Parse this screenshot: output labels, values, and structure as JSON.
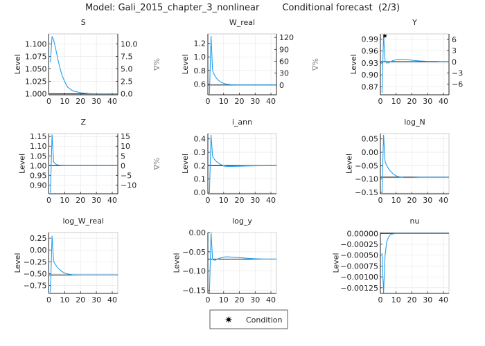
{
  "title": "Model: Gali_2015_chapter_3_nonlinear        Conditional forecast  (2/3)",
  "legend": {
    "label": "Condition",
    "marker": "star",
    "placement": "bottom-center"
  },
  "colors": {
    "forecast": "#1f9ff0",
    "steady_state": "#333333",
    "grid": "#e6e6e6"
  },
  "chart_data": [
    {
      "type": "line",
      "title": "S",
      "ylabel": "Level",
      "ylabel_right": "%Δ",
      "xlim": [
        0,
        43.5
      ],
      "ylim": [
        0.998,
        1.12
      ],
      "xticks": [
        0,
        10,
        20,
        30,
        40
      ],
      "yticks": [
        1.0,
        1.025,
        1.05,
        1.075,
        1.1
      ],
      "ytick_labels": [
        "1.000",
        "1.025",
        "1.050",
        "1.075",
        "1.100"
      ],
      "rticks": [
        "0.0",
        "2.5",
        "5.0",
        "7.5",
        "10.0"
      ],
      "steady_state": 1.0,
      "x": [
        1,
        2,
        3,
        4,
        5,
        6,
        8,
        10,
        12,
        15,
        20,
        25,
        30,
        35,
        40
      ],
      "values": [
        1.063,
        1.115,
        1.108,
        1.095,
        1.08,
        1.065,
        1.04,
        1.024,
        1.013,
        1.006,
        1.002,
        1.0005,
        1.0,
        1.0,
        1.0
      ]
    },
    {
      "type": "line",
      "title": "W_real",
      "ylabel": "Level",
      "ylabel_right": "%Δ",
      "xlim": [
        0,
        43.5
      ],
      "ylim": [
        0.44,
        1.34
      ],
      "xticks": [
        0,
        10,
        20,
        30,
        40
      ],
      "yticks": [
        0.6,
        0.8,
        1.0,
        1.2
      ],
      "ytick_labels": [
        "0.6",
        "0.8",
        "1.0",
        "1.2"
      ],
      "rticks": [
        "0",
        "30",
        "60",
        "90",
        "120"
      ],
      "steady_state": 0.585,
      "x": [
        1,
        2,
        3,
        4,
        5,
        6,
        8,
        10,
        12,
        15,
        20,
        25,
        30,
        35,
        40
      ],
      "values": [
        0.45,
        1.31,
        0.8,
        0.74,
        0.7,
        0.67,
        0.63,
        0.61,
        0.595,
        0.588,
        0.585,
        0.585,
        0.585,
        0.585,
        0.585
      ]
    },
    {
      "type": "line",
      "title": "Y",
      "ylabel": "Level",
      "ylabel_right": "%Δ",
      "xlim": [
        0,
        43.5
      ],
      "ylim": [
        0.85,
        1.003
      ],
      "xticks": [
        0,
        10,
        20,
        30,
        40
      ],
      "yticks": [
        0.87,
        0.9,
        0.93,
        0.96,
        0.99
      ],
      "ytick_labels": [
        "0.87",
        "0.90",
        "0.93",
        "0.96",
        "0.99"
      ],
      "rticks": [
        "−6",
        "−3",
        "0",
        "3",
        "6"
      ],
      "steady_state": 0.933,
      "x": [
        1,
        2,
        3,
        4,
        5,
        6,
        8,
        10,
        12,
        15,
        20,
        25,
        30,
        35,
        40
      ],
      "values": [
        0.855,
        1.0,
        0.935,
        0.93,
        0.93,
        0.932,
        0.936,
        0.938,
        0.939,
        0.939,
        0.937,
        0.935,
        0.934,
        0.934,
        0.933
      ],
      "condition": {
        "x": 2,
        "y": 1.0
      }
    },
    {
      "type": "line",
      "title": "Z",
      "ylabel": "Level",
      "ylabel_right": "%Δ",
      "xlim": [
        0,
        43.5
      ],
      "ylim": [
        0.855,
        1.165
      ],
      "xticks": [
        0,
        10,
        20,
        30,
        40
      ],
      "yticks": [
        0.9,
        0.95,
        1.0,
        1.05,
        1.1,
        1.15
      ],
      "ytick_labels": [
        "0.90",
        "0.95",
        "1.00",
        "1.05",
        "1.10",
        "1.15"
      ],
      "rticks": [
        "−10",
        "−5",
        "0",
        "5",
        "10",
        "15"
      ],
      "steady_state": 1.0,
      "x": [
        1,
        2,
        3,
        4,
        5,
        6,
        8,
        10,
        12,
        15,
        20,
        25,
        30,
        35,
        40
      ],
      "values": [
        0.86,
        1.16,
        1.02,
        1.01,
        1.005,
        1.003,
        1.001,
        1.0,
        1.0,
        1.0,
        1.0,
        1.0,
        1.0,
        1.0,
        1.0
      ]
    },
    {
      "type": "line",
      "title": "i_ann",
      "ylabel": "Level",
      "xlim": [
        0,
        43.5
      ],
      "ylim": [
        -0.01,
        0.44
      ],
      "xticks": [
        0,
        10,
        20,
        30,
        40
      ],
      "yticks": [
        0,
        0.1,
        0.2,
        0.3,
        0.4
      ],
      "ytick_labels": [
        "0.0",
        "0.1",
        "0.2",
        "0.3",
        "0.4"
      ],
      "steady_state": 0.2,
      "x": [
        1,
        2,
        3,
        4,
        5,
        6,
        8,
        10,
        12,
        15,
        20,
        25,
        30,
        35,
        40
      ],
      "values": [
        0.0,
        0.43,
        0.27,
        0.25,
        0.235,
        0.225,
        0.21,
        0.198,
        0.195,
        0.195,
        0.196,
        0.198,
        0.199,
        0.2,
        0.2
      ]
    },
    {
      "type": "line",
      "title": "log_N",
      "ylabel": "Level",
      "xlim": [
        0,
        43.5
      ],
      "ylim": [
        -0.155,
        0.07
      ],
      "xticks": [
        0,
        10,
        20,
        30,
        40
      ],
      "yticks": [
        -0.15,
        -0.1,
        -0.05,
        0,
        0.05
      ],
      "ytick_labels": [
        "−0.15",
        "−0.10",
        "−0.05",
        "0.00",
        "0.05"
      ],
      "steady_state": -0.093,
      "x": [
        1,
        2,
        3,
        4,
        5,
        6,
        8,
        10,
        12,
        15,
        20,
        25,
        30,
        35,
        40
      ],
      "values": [
        -0.15,
        0.065,
        -0.035,
        -0.05,
        -0.06,
        -0.068,
        -0.08,
        -0.088,
        -0.092,
        -0.094,
        -0.094,
        -0.093,
        -0.093,
        -0.093,
        -0.093
      ]
    },
    {
      "type": "line",
      "title": "log_W_real",
      "ylabel": "Level",
      "xlim": [
        0,
        43.5
      ],
      "ylim": [
        -0.92,
        0.37
      ],
      "xticks": [
        0,
        10,
        20,
        30,
        40
      ],
      "yticks": [
        -0.75,
        -0.5,
        -0.25,
        0,
        0.25
      ],
      "ytick_labels": [
        "−0.75",
        "−0.50",
        "−0.25",
        "0.00",
        "0.25"
      ],
      "steady_state": -0.53,
      "x": [
        1,
        2,
        3,
        4,
        5,
        6,
        8,
        10,
        12,
        15,
        20,
        25,
        30,
        35,
        40
      ],
      "values": [
        -0.9,
        0.3,
        -0.24,
        -0.3,
        -0.35,
        -0.39,
        -0.45,
        -0.49,
        -0.51,
        -0.525,
        -0.53,
        -0.53,
        -0.53,
        -0.53,
        -0.53
      ]
    },
    {
      "type": "line",
      "title": "log_y",
      "ylabel": "Level",
      "xlim": [
        0,
        43.5
      ],
      "ylim": [
        -0.158,
        0.0
      ],
      "xticks": [
        0,
        10,
        20,
        30,
        40
      ],
      "yticks": [
        -0.15,
        -0.1,
        -0.05,
        0
      ],
      "ytick_labels": [
        "−0.15",
        "−0.10",
        "−0.05",
        "0.00"
      ],
      "steady_state": -0.069,
      "x": [
        1,
        2,
        3,
        4,
        5,
        6,
        8,
        10,
        12,
        15,
        20,
        25,
        30,
        35,
        40
      ],
      "values": [
        -0.157,
        0.0,
        -0.068,
        -0.072,
        -0.071,
        -0.069,
        -0.066,
        -0.064,
        -0.063,
        -0.064,
        -0.065,
        -0.067,
        -0.068,
        -0.069,
        -0.069
      ]
    },
    {
      "type": "line",
      "title": "nu",
      "ylabel": "Level",
      "xlim": [
        0,
        43.5
      ],
      "ylim": [
        -0.00138,
        2e-05
      ],
      "xticks": [
        0,
        10,
        20,
        30,
        40
      ],
      "yticks": [
        -0.00125,
        -0.001,
        -0.00075,
        -0.0005,
        -0.00025,
        0
      ],
      "ytick_labels": [
        "−0.00125",
        "−0.00100",
        "−0.00075",
        "−0.00050",
        "−0.00025",
        "0.00000"
      ],
      "steady_state": 0,
      "x": [
        1,
        2,
        3,
        4,
        5,
        6,
        8,
        10,
        12,
        15,
        20,
        25,
        30,
        35,
        40
      ],
      "values": [
        -0.00045,
        -0.00137,
        -0.0005,
        -0.0002,
        -0.0001,
        -4e-05,
        -1e-05,
        0,
        0,
        0,
        0,
        0,
        0,
        0,
        0
      ]
    }
  ]
}
